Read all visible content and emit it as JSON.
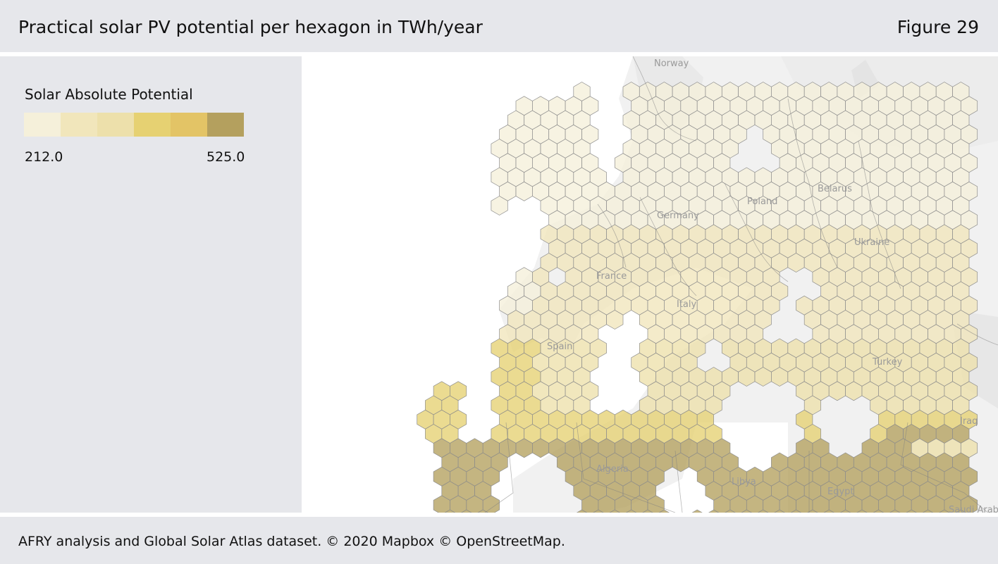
{
  "header": {
    "title": "Practical solar PV potential per hexagon in TWh/year",
    "figure_label": "Figure 29"
  },
  "legend": {
    "title": "Solar Absolute Potential",
    "min_label": "212.0",
    "max_label": "525.0",
    "min_value": 212.0,
    "max_value": 525.0,
    "colors": [
      "#f5f0da",
      "#f1e6bb",
      "#ede0ab",
      "#e6d172",
      "#e3c466",
      "#b4a05e"
    ]
  },
  "map": {
    "labels": {
      "norway": "Norway",
      "poland": "Poland",
      "belarus": "Belarus",
      "germany": "Germany",
      "ukraine": "Ukraine",
      "france": "France",
      "italy": "Italy",
      "spain": "Spain",
      "turkey": "Turkey",
      "iraq": "Iraq",
      "algeria": "Algeria",
      "libya": "Libya",
      "egypt": "Egypt",
      "saudi_arabia": "Saudi Arab"
    }
  },
  "footer": {
    "source": "AFRY analysis and Global Solar Atlas dataset. © 2020 Mapbox © OpenStreetMap."
  }
}
